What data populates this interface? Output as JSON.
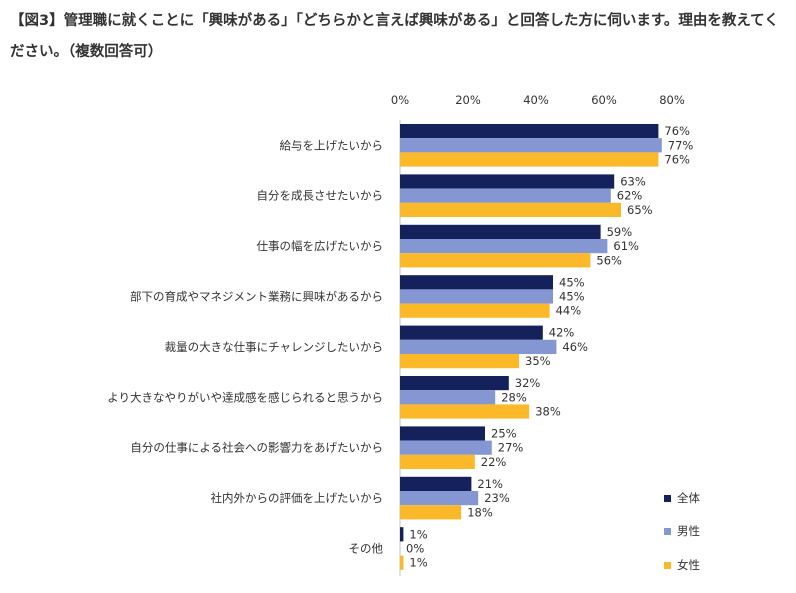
{
  "title": "【図3】管理職に就くことに「興味がある」「どちらかと言えば興味がある」と回答した方に伺います。理由を教えてください。（複数回答可）",
  "chart_data": {
    "type": "bar",
    "orientation": "horizontal",
    "xlim": [
      0,
      80
    ],
    "ticks": [
      "0%",
      "20%",
      "40%",
      "60%",
      "80%"
    ],
    "tick_values": [
      0,
      20,
      40,
      60,
      80
    ],
    "legend_position": "bottom-right",
    "categories": [
      "給与を上げたいから",
      "自分を成長させたいから",
      "仕事の幅を広げたいから",
      "部下の育成やマネジメント業務に興味があるから",
      "裁量の大きな仕事にチャレンジしたいから",
      "より大きなやりがいや達成感を感じられると思うから",
      "自分の仕事による社会への影響力をあげたいから",
      "社内外からの評価を上げたいから",
      "その他"
    ],
    "series": [
      {
        "name": "全体",
        "color": "#14215a",
        "values": [
          76,
          63,
          59,
          45,
          42,
          32,
          25,
          21,
          1
        ]
      },
      {
        "name": "男性",
        "color": "#8497d2",
        "values": [
          77,
          62,
          61,
          45,
          46,
          28,
          27,
          23,
          0
        ]
      },
      {
        "name": "女性",
        "color": "#fbb829",
        "values": [
          76,
          65,
          56,
          44,
          35,
          38,
          22,
          18,
          1
        ]
      }
    ]
  }
}
